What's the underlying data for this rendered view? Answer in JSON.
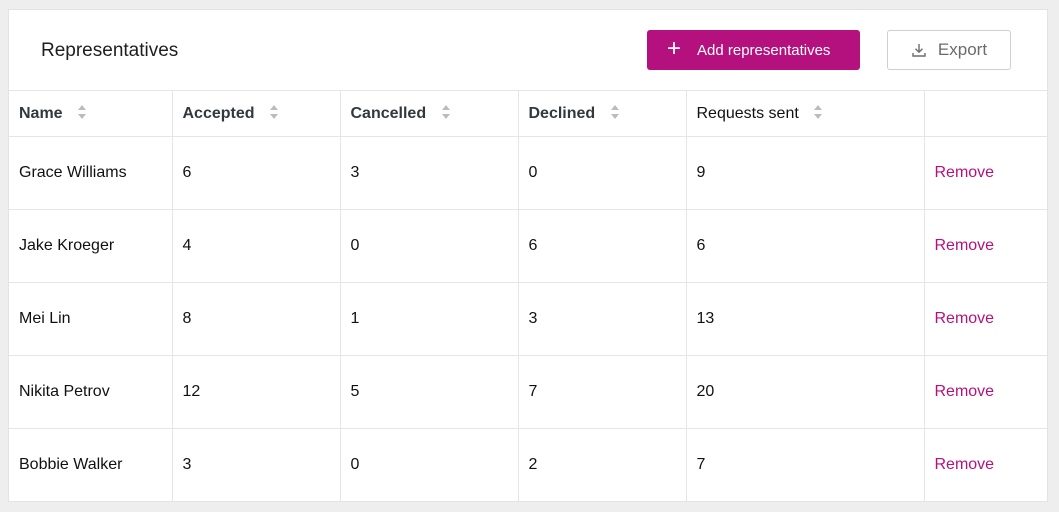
{
  "header": {
    "title": "Representatives",
    "add_label": "Add representatives",
    "export_label": "Export"
  },
  "table": {
    "columns": [
      "Name",
      "Accepted",
      "Cancelled",
      "Declined",
      "Requests sent"
    ],
    "rows": [
      {
        "name": "Grace Williams",
        "accepted": "6",
        "cancelled": "3",
        "declined": "0",
        "requests_sent": "9",
        "action": "Remove"
      },
      {
        "name": "Jake Kroeger",
        "accepted": "4",
        "cancelled": "0",
        "declined": "6",
        "requests_sent": "6",
        "action": "Remove"
      },
      {
        "name": "Mei Lin",
        "accepted": "8",
        "cancelled": "1",
        "declined": "3",
        "requests_sent": "13",
        "action": "Remove"
      },
      {
        "name": "Nikita Petrov",
        "accepted": "12",
        "cancelled": "5",
        "declined": "7",
        "requests_sent": "20",
        "action": "Remove"
      },
      {
        "name": "Bobbie Walker",
        "accepted": "3",
        "cancelled": "0",
        "declined": "2",
        "requests_sent": "7",
        "action": "Remove"
      }
    ]
  },
  "colors": {
    "accent": "#b5117e",
    "background": "#eeeeef",
    "border": "#e6e6ea"
  }
}
